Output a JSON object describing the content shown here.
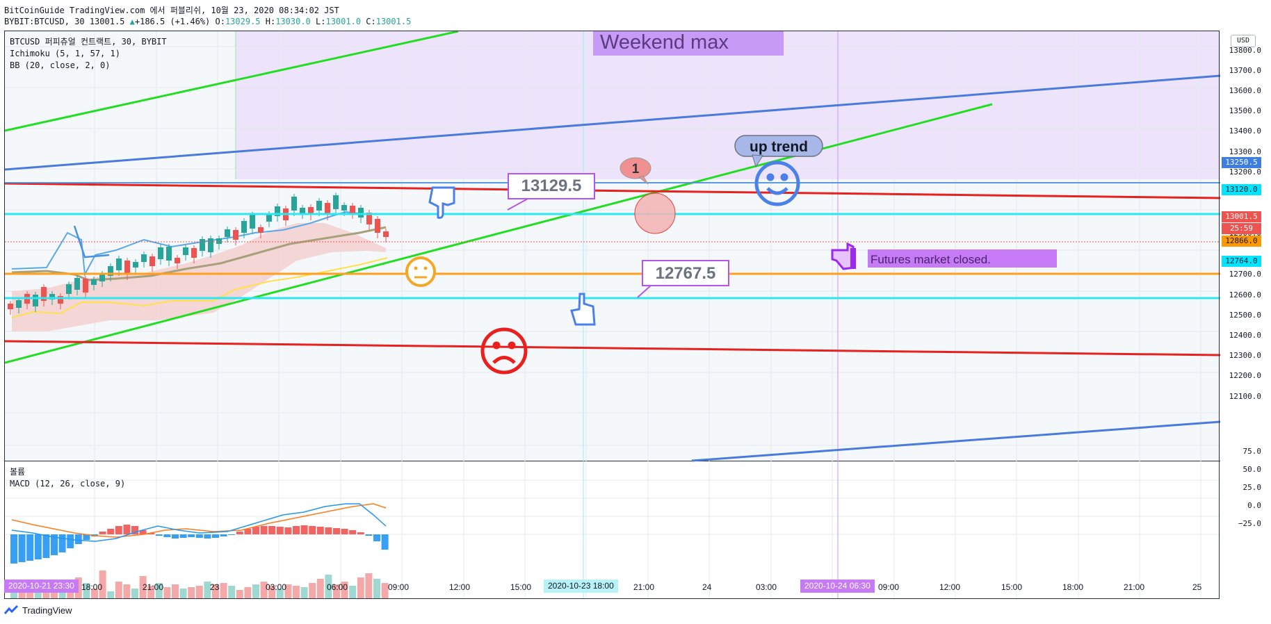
{
  "header": {
    "publisher": "BitCoinGuide TradingView.com 에서 퍼블리쉬, 10월 23, 2020 08:34:02 JST",
    "symbol": "BYBIT:BTCUSD, 30",
    "last": "13001.5",
    "change_arrow": "▲",
    "change": "+186.5 (+1.46%)",
    "o_label": "O:",
    "o": "13029.5",
    "h_label": "H:",
    "h": "13030.0",
    "l_label": "L:",
    "l": "13001.0",
    "c_label": "C:",
    "c": "13001.5"
  },
  "legend": {
    "title": "BTCUSD 퍼피츄얼 컨트랙트, 30, BYBIT",
    "ichimoku": "Ichimoku (5, 1, 57, 1)",
    "bb": "BB (20, close, 2, 0)"
  },
  "macd_legend": {
    "volume": "볼륨",
    "macd": "MACD (12, 26, close, 9)"
  },
  "annotations": {
    "weekend": "Weekend max",
    "uptrend": "up trend",
    "callout_high": "13129.5",
    "callout_low": "12767.5",
    "bubble_number": "1",
    "futures_closed": "Futures market closed."
  },
  "y_axis": {
    "currency": "USD",
    "labels": [
      "13800.0",
      "13700.0",
      "13600.0",
      "13500.0",
      "13400.0",
      "13300.0",
      "13200.0",
      "12900.0",
      "12700.0",
      "12600.0",
      "12500.0",
      "12400.0",
      "12300.0",
      "12200.0",
      "12100.0"
    ],
    "tags": [
      {
        "text": "13250.5",
        "bg": "#3d7ee0",
        "fg": "#ffffff"
      },
      {
        "text": "13120.0",
        "bg": "#00e5ff",
        "fg": "#131722"
      },
      {
        "text": "13001.5",
        "bg": "#ef5350",
        "fg": "#ffffff"
      },
      {
        "text": "25:59",
        "bg": "#ef5350",
        "fg": "#ffffff"
      },
      {
        "text": "12866.0",
        "bg": "#ff9800",
        "fg": "#131722"
      },
      {
        "text": "12764.0",
        "bg": "#00e5ff",
        "fg": "#131722"
      }
    ],
    "macd_labels": [
      "75.0",
      "50.0",
      "25.0",
      "0.0",
      "−25.0"
    ]
  },
  "x_axis": {
    "labels": [
      "18:00",
      "21:00",
      "23",
      "03:00",
      "06:00",
      "09:00",
      "12:00",
      "15:00",
      "21:00",
      "24",
      "03:00",
      "09:00",
      "12:00",
      "15:00",
      "18:00",
      "21:00",
      "25"
    ],
    "badge_left": "2020-10-21  23:30",
    "badge_mid": "2020-10-23  18:00",
    "badge_right": "2020-10-24  06:30"
  },
  "footer": {
    "brand": "TradingView"
  },
  "colors": {
    "up": "#26a69a",
    "down": "#ef5350",
    "weekend_bg": "#ede4fb",
    "green_line": "#22dd22",
    "blue_line": "#4a7bdc",
    "red_line": "#e8201e",
    "cyan_line": "#2ee6f0",
    "orange_line": "#ff9f1c",
    "purple": "#b455f0"
  }
}
